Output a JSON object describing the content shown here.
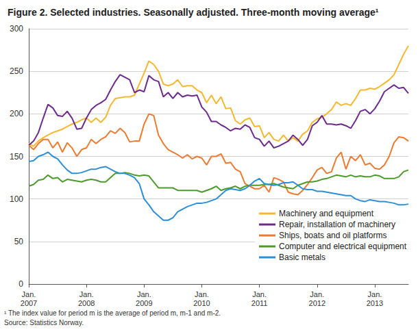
{
  "chart_data": {
    "type": "line",
    "title": "Figure 2. Selected industries. Seasonally adjusted. Three-month moving average¹",
    "annotations": [
      "¹ The index value for period m is the average of period m, m-1 and m-2.",
      "Source: Statistics Norway."
    ],
    "categories": [
      "Jan.\n2007",
      null,
      null,
      null,
      null,
      null,
      null,
      null,
      null,
      null,
      null,
      null,
      "Jan.\n2008",
      null,
      null,
      null,
      null,
      null,
      null,
      null,
      null,
      null,
      null,
      null,
      "Jan.\n2009",
      null,
      null,
      null,
      null,
      null,
      null,
      null,
      null,
      null,
      null,
      null,
      "Jan.\n2010",
      null,
      null,
      null,
      null,
      null,
      null,
      null,
      null,
      null,
      null,
      null,
      "Jan.\n2011",
      null,
      null,
      null,
      null,
      null,
      null,
      null,
      null,
      null,
      null,
      null,
      "Jan.\n2012",
      null,
      null,
      null,
      null,
      null,
      null,
      null,
      null,
      null,
      null,
      null,
      "Jan.\n2013",
      null,
      null,
      null,
      null,
      null,
      null,
      null
    ],
    "series": [
      {
        "name": "Machinery and equipment",
        "color": "#f5b82e",
        "values": [
          165,
          162,
          168,
          172,
          175,
          178,
          180,
          182,
          185,
          188,
          190,
          193,
          195,
          190,
          195,
          190,
          196,
          210,
          218,
          219,
          220,
          220,
          222,
          235,
          248,
          262,
          258,
          250,
          235,
          233,
          235,
          240,
          232,
          233,
          233,
          228,
          225,
          213,
          222,
          212,
          220,
          206,
          207,
          192,
          188,
          193,
          195,
          185,
          186,
          172,
          178,
          170,
          168,
          175,
          168,
          172,
          168,
          176,
          180,
          190,
          194,
          196,
          200,
          205,
          214,
          210,
          212,
          210,
          218,
          228,
          228,
          230,
          229,
          232,
          236,
          240,
          246,
          258,
          270,
          280
        ]
      },
      {
        "name": "Repair, installation of machinery",
        "color": "#6b2a8c",
        "values": [
          163,
          168,
          178,
          195,
          211,
          207,
          198,
          197,
          203,
          195,
          182,
          183,
          195,
          205,
          210,
          213,
          217,
          228,
          238,
          246,
          243,
          240,
          225,
          228,
          226,
          245,
          240,
          238,
          220,
          225,
          218,
          225,
          220,
          222,
          221,
          222,
          208,
          202,
          191,
          191,
          187,
          184,
          180,
          183,
          182,
          187,
          184,
          172,
          170,
          162,
          168,
          160,
          162,
          165,
          168,
          175,
          170,
          163,
          170,
          186,
          190,
          198,
          188,
          188,
          187,
          188,
          186,
          183,
          192,
          203,
          205,
          200,
          206,
          215,
          226,
          230,
          234,
          230,
          231,
          224
        ]
      },
      {
        "name": "Ships, boats and oil platforms",
        "color": "#ec7a30",
        "values": [
          163,
          158,
          165,
          170,
          170,
          160,
          167,
          155,
          166,
          160,
          150,
          158,
          160,
          170,
          165,
          170,
          173,
          180,
          177,
          183,
          178,
          167,
          168,
          168,
          188,
          200,
          198,
          175,
          165,
          158,
          155,
          152,
          148,
          152,
          147,
          150,
          148,
          140,
          150,
          150,
          153,
          142,
          143,
          135,
          132,
          118,
          115,
          112,
          112,
          116,
          108,
          125,
          123,
          120,
          108,
          106,
          105,
          110,
          117,
          125,
          134,
          137,
          130,
          132,
          148,
          155,
          135,
          150,
          145,
          152,
          140,
          142,
          136,
          135,
          140,
          150,
          166,
          173,
          172,
          168
        ]
      },
      {
        "name": "Computer and electrical equipment",
        "color": "#4c9a2a",
        "values": [
          115,
          117,
          122,
          123,
          128,
          124,
          125,
          120,
          123,
          122,
          121,
          120,
          122,
          123,
          122,
          120,
          120,
          125,
          130,
          130,
          131,
          130,
          128,
          127,
          128,
          127,
          120,
          113,
          113,
          113,
          113,
          110,
          110,
          110,
          110,
          110,
          108,
          110,
          112,
          115,
          110,
          112,
          113,
          115,
          112,
          115,
          116,
          116,
          116,
          117,
          117,
          118,
          116,
          114,
          113,
          112,
          116,
          118,
          120,
          120,
          121,
          123,
          124,
          126,
          128,
          127,
          126,
          128,
          126,
          127,
          126,
          126,
          128,
          127,
          124,
          124,
          124,
          126,
          132,
          134
        ]
      },
      {
        "name": "Basic metals",
        "color": "#2c8fd6",
        "values": [
          144,
          145,
          150,
          152,
          155,
          150,
          147,
          140,
          134,
          130,
          130,
          131,
          133,
          135,
          135,
          137,
          138,
          135,
          132,
          130,
          130,
          128,
          125,
          118,
          100,
          93,
          85,
          80,
          75,
          75,
          78,
          85,
          88,
          91,
          93,
          95,
          95,
          96,
          98,
          100,
          105,
          110,
          112,
          111,
          110,
          112,
          116,
          121,
          124,
          118,
          117,
          116,
          117,
          119,
          119,
          120,
          116,
          112,
          111,
          111,
          109,
          109,
          108,
          107,
          106,
          105,
          104,
          104,
          100,
          98,
          97,
          99,
          98,
          97,
          97,
          96,
          95,
          93,
          93,
          94
        ]
      }
    ],
    "ylim": [
      0,
      300
    ],
    "yticks": [
      0,
      50,
      100,
      150,
      200,
      250,
      300
    ],
    "grid": true,
    "legend": "lower right"
  }
}
